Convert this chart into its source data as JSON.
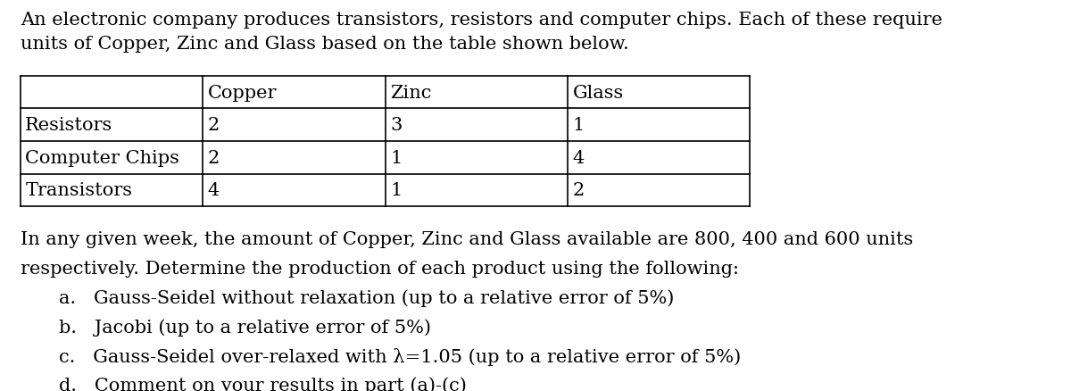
{
  "bg_color": "#ffffff",
  "text_color": "#000000",
  "intro_line1": "An electronic company produces transistors, resistors and computer chips. Each of these require",
  "intro_line2": "units of Copper, Zinc and Glass based on the table shown below.",
  "table_headers": [
    "",
    "Copper",
    "Zinc",
    "Glass"
  ],
  "table_rows": [
    [
      "Resistors",
      "2",
      "3",
      "1"
    ],
    [
      "Computer Chips",
      "2",
      "1",
      "4"
    ],
    [
      "Transistors",
      "4",
      "1",
      "2"
    ]
  ],
  "body_line1": "In any given week, the amount of Copper, Zinc and Glass available are 800, 400 and 600 units",
  "body_line2": "respectively. Determine the production of each product using the following:",
  "items": [
    "a.   Gauss-Seidel without relaxation (up to a relative error of 5%)",
    "b.   Jacobi (up to a relative error of 5%)",
    "c.   Gauss-Seidel over-relaxed with λ=1.05 (up to a relative error of 5%)",
    "d.   Comment on your results in part (a)-(c)"
  ],
  "font_size_body": 15,
  "font_size_table": 15,
  "font_family": "serif"
}
